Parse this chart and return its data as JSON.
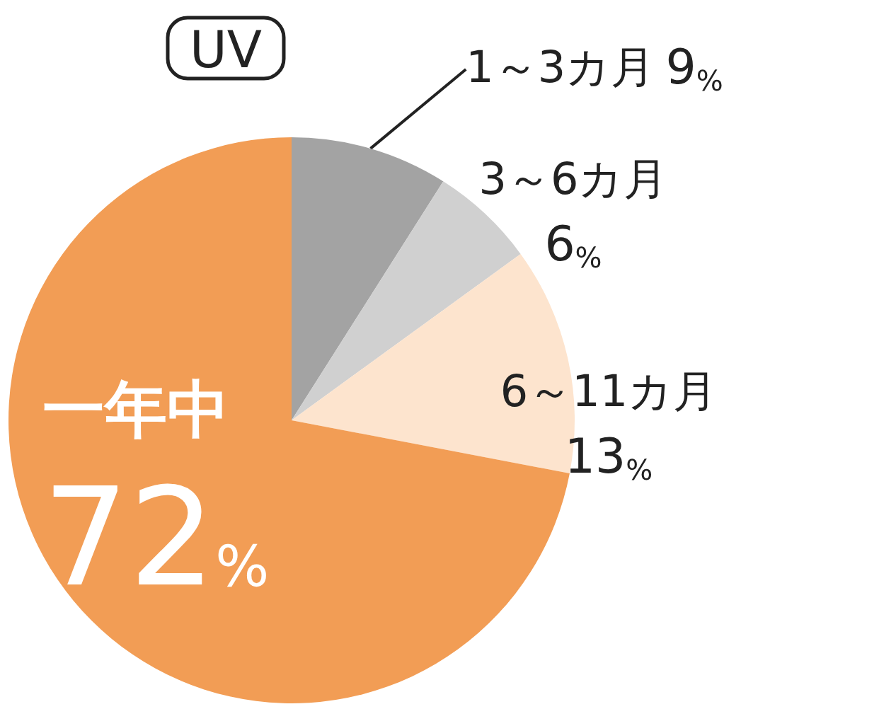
{
  "chart_data": {
    "type": "pie",
    "title": "UV",
    "categories": [
      "1～3カ月",
      "3～6カ月",
      "6～11カ月",
      "一年中"
    ],
    "values": [
      9,
      6,
      13,
      72
    ],
    "colors": [
      "#a3a3a3",
      "#d0d0d0",
      "#fde4ce",
      "#f29d55"
    ],
    "value_labels": [
      "9%",
      "6%",
      "13%",
      "72%"
    ]
  }
}
